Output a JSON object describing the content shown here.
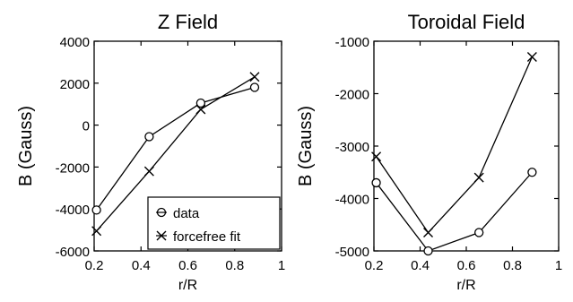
{
  "chart_data": [
    {
      "type": "line",
      "title": "Z Field",
      "xlabel": "r/R",
      "ylabel": "B (Gauss)",
      "xlim": [
        0.2,
        1
      ],
      "ylim": [
        -6000,
        4000
      ],
      "xticks": [
        0.2,
        0.4,
        0.6,
        0.8,
        1
      ],
      "xtick_labels": [
        "0.2",
        "0.4",
        "0.6",
        "0.8",
        "1"
      ],
      "yticks": [
        -6000,
        -4000,
        -2000,
        0,
        2000,
        4000
      ],
      "ytick_labels": [
        "-6000",
        "-4000",
        "-2000",
        "0",
        "2000",
        "4000"
      ],
      "x": [
        0.21,
        0.435,
        0.655,
        0.885
      ],
      "series": [
        {
          "name": "data",
          "marker": "circle",
          "values": [
            -4050,
            -550,
            1050,
            1800
          ]
        },
        {
          "name": "forcefree fit",
          "marker": "x",
          "values": [
            -5050,
            -2200,
            750,
            2300
          ]
        }
      ],
      "legend": {
        "position": "bottom-right",
        "entries": [
          "data",
          "forcefree fit"
        ]
      }
    },
    {
      "type": "line",
      "title": "Toroidal Field",
      "xlabel": "r/R",
      "ylabel": "B (Gauss)",
      "xlim": [
        0.2,
        1
      ],
      "ylim": [
        -5000,
        -1000
      ],
      "xticks": [
        0.2,
        0.4,
        0.6,
        0.8,
        1
      ],
      "xtick_labels": [
        "0.2",
        "0.4",
        "0.6",
        "0.8",
        "1"
      ],
      "yticks": [
        -5000,
        -4000,
        -3000,
        -2000,
        -1000
      ],
      "ytick_labels": [
        "-5000",
        "-4000",
        "-3000",
        "-2000",
        "-1000"
      ],
      "x": [
        0.21,
        0.435,
        0.655,
        0.885
      ],
      "series": [
        {
          "name": "data",
          "marker": "circle",
          "values": [
            -3700,
            -5000,
            -4650,
            -3500
          ]
        },
        {
          "name": "forcefree fit",
          "marker": "x",
          "values": [
            -3200,
            -4650,
            -3600,
            -1300
          ]
        }
      ]
    }
  ]
}
